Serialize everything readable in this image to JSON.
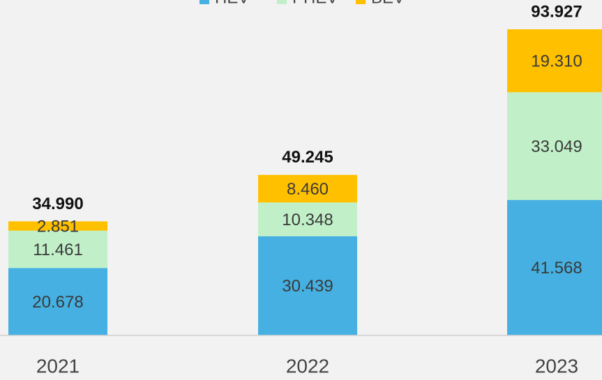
{
  "chart_data": {
    "type": "stacked-bar",
    "categories": [
      "2021",
      "2022",
      "2023"
    ],
    "series": [
      {
        "name": "HEV",
        "color": "#45b0e1",
        "values": [
          20.678,
          30.439,
          41.568
        ],
        "value_labels": [
          "20.678",
          "30.439",
          "41.568"
        ]
      },
      {
        "name": "PHEV",
        "color": "#c1f0c8",
        "values": [
          11.461,
          10.348,
          33.049
        ],
        "value_labels": [
          "11.461",
          "10.348",
          "33.049"
        ]
      },
      {
        "name": "BEV",
        "color": "#ffc000",
        "values": [
          2.851,
          8.46,
          19.31
        ],
        "value_labels": [
          "2.851",
          "8.460",
          "19.310"
        ]
      }
    ],
    "totals": [
      34.99,
      49.245,
      93.927
    ],
    "total_labels": [
      "34.990",
      "49.245",
      "93.927"
    ],
    "legend": "top"
  }
}
